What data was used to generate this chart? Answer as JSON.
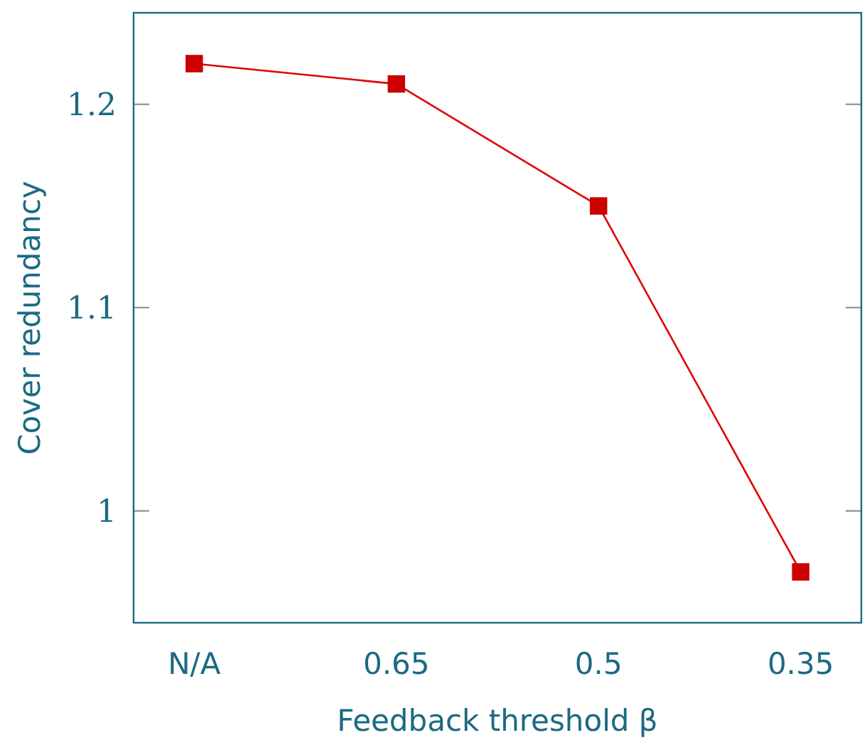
{
  "chart_data": {
    "type": "line",
    "xlabel": "Feedback threshold β",
    "ylabel": "Cover redundancy",
    "categories": [
      "N/A",
      "0.65",
      "0.5",
      "0.35"
    ],
    "series": [
      {
        "color": "#e00000",
        "values": [
          1.22,
          1.21,
          1.15,
          0.97
        ]
      }
    ],
    "marker": "square",
    "ylim": [
      0.945,
      1.245
    ],
    "yticks": [
      1,
      1.1,
      1.2
    ]
  }
}
